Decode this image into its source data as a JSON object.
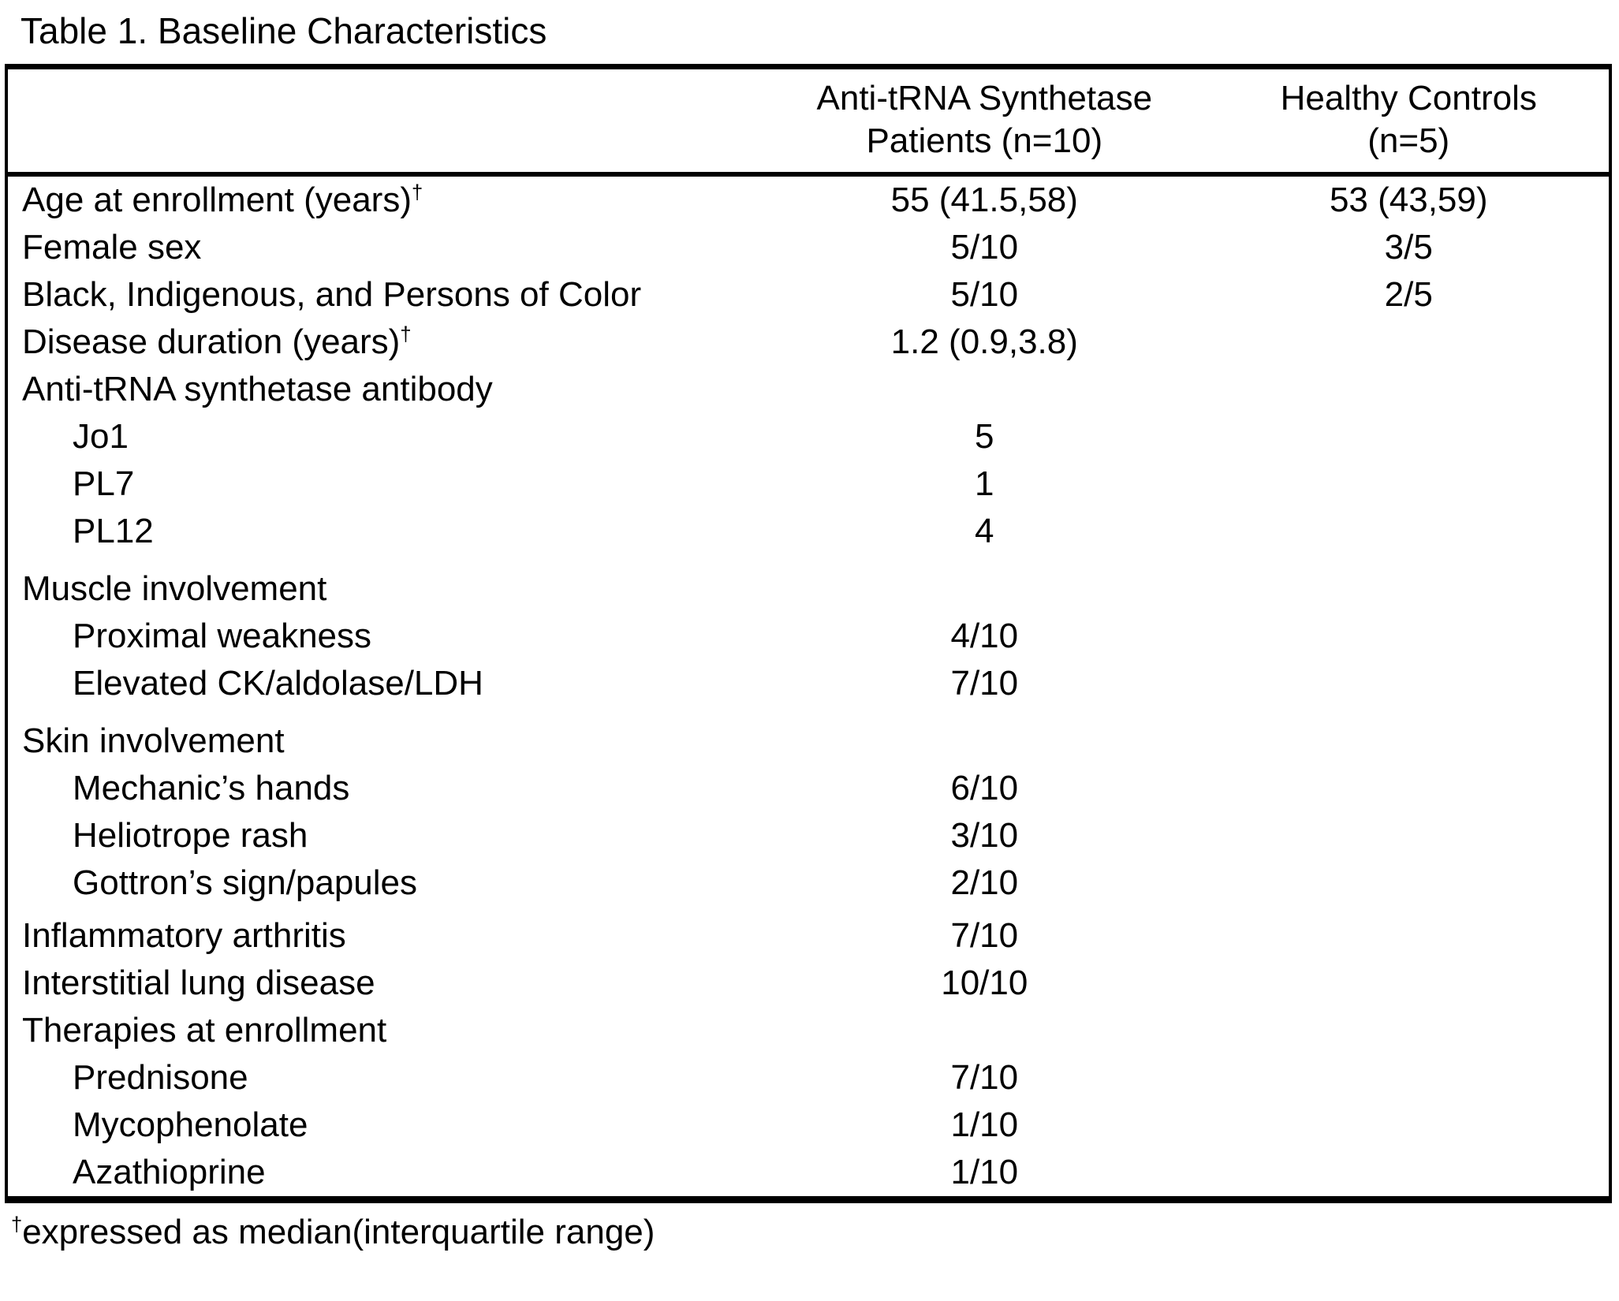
{
  "title": "Table 1. Baseline Characteristics",
  "colors": {
    "text": "#000000",
    "background": "#ffffff",
    "border": "#000000"
  },
  "table": {
    "header": {
      "patients": {
        "line1": "Anti-tRNA Synthetase",
        "line2": "Patients (n=10)"
      },
      "controls": {
        "line1": "Healthy Controls",
        "line2": "(n=5)"
      }
    },
    "rows": [
      {
        "label": "Age at enrollment (years)",
        "sup": "†",
        "indent": false,
        "gap": "",
        "patients": "55 (41.5,58)",
        "controls": "53 (43,59)"
      },
      {
        "label": "Female sex",
        "sup": "",
        "indent": false,
        "gap": "",
        "patients": "5/10",
        "controls": "3/5"
      },
      {
        "label": "Black, Indigenous, and Persons of Color",
        "sup": "",
        "indent": false,
        "gap": "",
        "patients": "5/10",
        "controls": "2/5"
      },
      {
        "label": "Disease duration (years)",
        "sup": "†",
        "indent": false,
        "gap": "",
        "patients": "1.2 (0.9,3.8)",
        "controls": ""
      },
      {
        "label": "Anti-tRNA synthetase antibody",
        "sup": "",
        "indent": false,
        "gap": "",
        "patients": "",
        "controls": ""
      },
      {
        "label": "Jo1",
        "sup": "",
        "indent": true,
        "gap": "",
        "patients": "5",
        "controls": ""
      },
      {
        "label": "PL7",
        "sup": "",
        "indent": true,
        "gap": "",
        "patients": "1",
        "controls": ""
      },
      {
        "label": "PL12",
        "sup": "",
        "indent": true,
        "gap": "",
        "patients": "4",
        "controls": ""
      },
      {
        "label": "Muscle involvement",
        "sup": "",
        "indent": false,
        "gap": "lg",
        "patients": "",
        "controls": ""
      },
      {
        "label": "Proximal weakness",
        "sup": "",
        "indent": true,
        "gap": "",
        "patients": "4/10",
        "controls": ""
      },
      {
        "label": "Elevated CK/aldolase/LDH",
        "sup": "",
        "indent": true,
        "gap": "",
        "patients": "7/10",
        "controls": ""
      },
      {
        "label": "Skin involvement",
        "sup": "",
        "indent": false,
        "gap": "lg",
        "patients": "",
        "controls": ""
      },
      {
        "label": "Mechanic’s hands",
        "sup": "",
        "indent": true,
        "gap": "",
        "patients": "6/10",
        "controls": ""
      },
      {
        "label": "Heliotrope rash",
        "sup": "",
        "indent": true,
        "gap": "",
        "patients": "3/10",
        "controls": ""
      },
      {
        "label": "Gottron’s sign/papules",
        "sup": "",
        "indent": true,
        "gap": "",
        "patients": "2/10",
        "controls": ""
      },
      {
        "label": "Inflammatory arthritis",
        "sup": "",
        "indent": false,
        "gap": "sm",
        "patients": "7/10",
        "controls": ""
      },
      {
        "label": "Interstitial lung disease",
        "sup": "",
        "indent": false,
        "gap": "",
        "patients": "10/10",
        "controls": ""
      },
      {
        "label": "Therapies at enrollment",
        "sup": "",
        "indent": false,
        "gap": "",
        "patients": "",
        "controls": ""
      },
      {
        "label": "Prednisone",
        "sup": "",
        "indent": true,
        "gap": "",
        "patients": "7/10",
        "controls": ""
      },
      {
        "label": "Mycophenolate",
        "sup": "",
        "indent": true,
        "gap": "",
        "patients": "1/10",
        "controls": ""
      },
      {
        "label": "Azathioprine",
        "sup": "",
        "indent": true,
        "gap": "",
        "patients": "1/10",
        "controls": ""
      }
    ]
  },
  "footnote": {
    "symbol": "†",
    "text": "expressed as median(interquartile range)"
  }
}
